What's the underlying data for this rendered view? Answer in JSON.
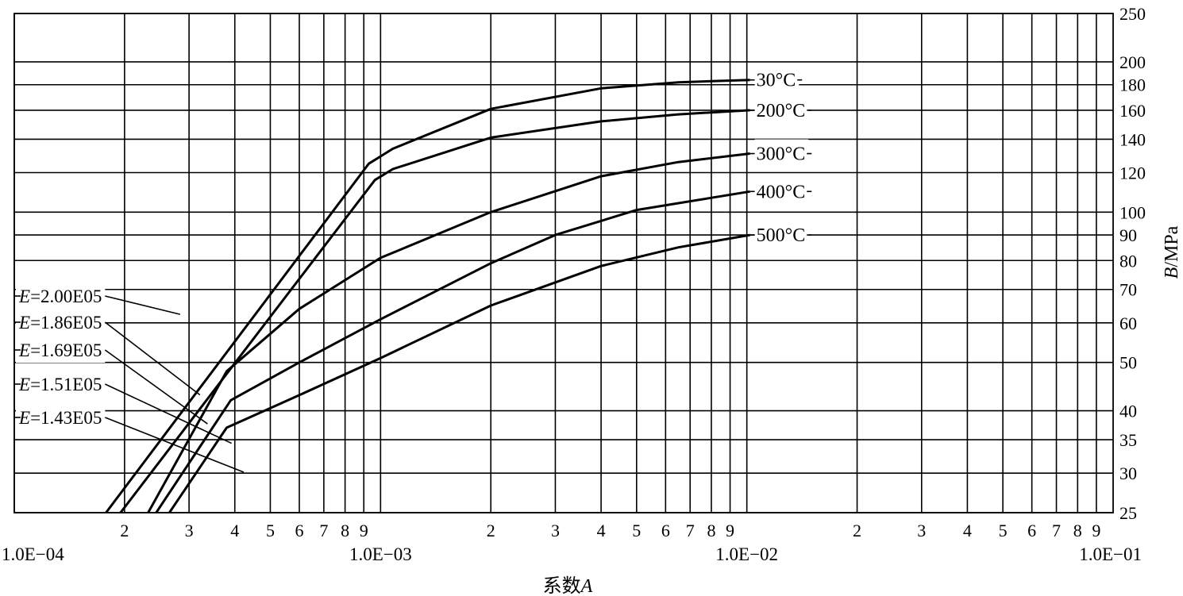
{
  "chart_data": {
    "type": "line",
    "x_scale": "log",
    "y_scale": "log",
    "xlim": [
      0.0001,
      0.1
    ],
    "ylim": [
      25,
      250
    ],
    "grid": true,
    "xlabel": {
      "prefix": "系数",
      "var": "A"
    },
    "ylabel": {
      "var": "B",
      "unit": "/MPa"
    },
    "decade_labels": [
      "1.0E−04",
      "1.0E−03",
      "1.0E−02",
      "1.0E−01"
    ],
    "x_minor_tick_labels": [
      "2",
      "3",
      "4",
      "5",
      "6",
      "7",
      "8",
      "9"
    ],
    "y_ticks": [
      25,
      30,
      35,
      40,
      50,
      60,
      70,
      80,
      90,
      100,
      120,
      140,
      160,
      180,
      200,
      250
    ],
    "y_tick_labels": [
      "25",
      "30",
      "35",
      "40",
      "50",
      "60",
      "70",
      "80",
      "90",
      "100",
      "120",
      "140",
      "160",
      "180",
      "200",
      "250"
    ],
    "series": [
      {
        "name": "30°C",
        "x": [
          0.000178,
          0.000928,
          0.00108,
          0.002,
          0.004,
          0.0065,
          0.0102
        ],
        "y": [
          25,
          125,
          134,
          161,
          177,
          182,
          184
        ]
      },
      {
        "name": "200°C",
        "x": [
          0.000195,
          0.000965,
          0.00108,
          0.002,
          0.004,
          0.0065,
          0.0102
        ],
        "y": [
          25,
          116,
          122,
          141,
          152,
          157,
          160
        ]
      },
      {
        "name": "300°C",
        "x": [
          0.000232,
          0.00038,
          0.0006,
          0.001,
          0.002,
          0.004,
          0.0065,
          0.0102
        ],
        "y": [
          25,
          48,
          64,
          81,
          100,
          118,
          126,
          131
        ]
      },
      {
        "name": "400°C",
        "x": [
          0.000244,
          0.00039,
          0.0006,
          0.001,
          0.002,
          0.003,
          0.005,
          0.0102
        ],
        "y": [
          25,
          42,
          50,
          61,
          79,
          90,
          101,
          110
        ]
      },
      {
        "name": "500°C",
        "x": [
          0.000265,
          0.00038,
          0.0006,
          0.001,
          0.002,
          0.004,
          0.0065,
          0.0102
        ],
        "y": [
          25,
          37,
          43,
          51,
          65,
          78,
          85,
          90
        ]
      }
    ],
    "e_lines": [
      {
        "prefix": "E",
        "value": "=2.00E05"
      },
      {
        "prefix": "E",
        "value": "=1.86E05"
      },
      {
        "prefix": "E",
        "value": "=1.69E05"
      },
      {
        "prefix": "E",
        "value": "=1.51E05"
      },
      {
        "prefix": "E",
        "value": "=1.43E05"
      }
    ]
  }
}
